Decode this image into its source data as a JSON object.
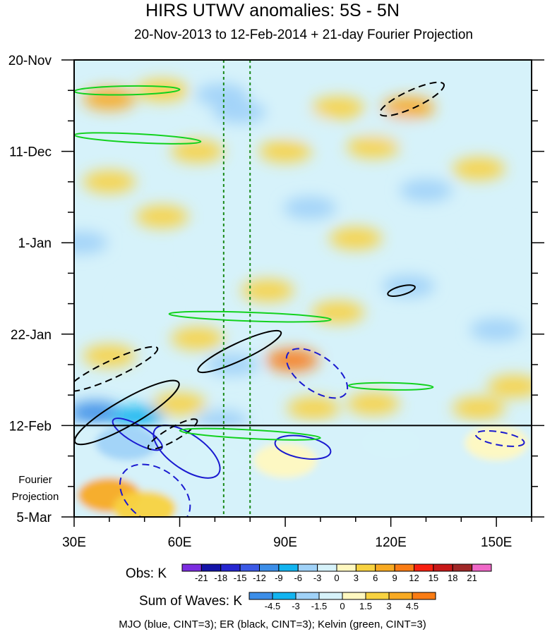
{
  "chart_data": {
    "type": "heatmap",
    "title": "HIRS UTWV anomalies: 5S - 5N",
    "subtitle": "20-Nov-2013 to 12-Feb-2014 + 21-day Fourier Projection",
    "x_ticks": [
      "30E",
      "60E",
      "90E",
      "120E",
      "150E"
    ],
    "x_tick_values": [
      30,
      60,
      90,
      120,
      150
    ],
    "xlim": [
      30,
      160
    ],
    "y_ticks": [
      "20-Nov",
      "11-Dec",
      "1-Jan",
      "22-Jan",
      "12-Feb",
      "5-Mar"
    ],
    "y_tick_days": [
      0,
      21,
      42,
      63,
      84,
      105
    ],
    "ylim_days": [
      0,
      105
    ],
    "projection_start_day": 84,
    "projection_label_1": "Fourier",
    "projection_label_2": "Projection",
    "reference_lines_lon": [
      72.5,
      80
    ],
    "obs_colorbar": {
      "label": "Obs: K",
      "ticks": [
        "-21",
        "-18",
        "-15",
        "-12",
        "-9",
        "-6",
        "-3",
        "0",
        "3",
        "6",
        "9",
        "12",
        "15",
        "18",
        "21"
      ],
      "colors": [
        "#7c2de0",
        "#1414a8",
        "#2626d0",
        "#3c5ae6",
        "#3c8ee8",
        "#12b4f0",
        "#a0d2f8",
        "#d6f2fa",
        "#fff8c0",
        "#f8d240",
        "#f8aa22",
        "#fa7c14",
        "#f82010",
        "#c81818",
        "#a02828",
        "#f068c8"
      ]
    },
    "wave_colorbar": {
      "label": "Sum of Waves: K",
      "ticks": [
        "-4.5",
        "-3",
        "-1.5",
        "0",
        "1.5",
        "3",
        "4.5"
      ],
      "colors": [
        "#3c8ee8",
        "#12b4f0",
        "#a0d2f8",
        "#d6f2fa",
        "#fff8c0",
        "#f8d240",
        "#f8aa22",
        "#fa7c14"
      ]
    },
    "anomaly_blobs": [
      {
        "lon": 40,
        "day": 9,
        "v": 6
      },
      {
        "lon": 55,
        "day": 7,
        "v": 4
      },
      {
        "lon": 85,
        "day": 4,
        "v": -3
      },
      {
        "lon": 72,
        "day": 8,
        "v": -4
      },
      {
        "lon": 77,
        "day": 12,
        "v": -5
      },
      {
        "lon": 95,
        "day": 15,
        "v": -3
      },
      {
        "lon": 120,
        "day": 16,
        "v": -3
      },
      {
        "lon": 125,
        "day": 11,
        "v": 6
      },
      {
        "lon": 105,
        "day": 11,
        "v": 4
      },
      {
        "lon": 65,
        "day": 21,
        "v": 4
      },
      {
        "lon": 40,
        "day": 28,
        "v": 5
      },
      {
        "lon": 90,
        "day": 21,
        "v": 4
      },
      {
        "lon": 115,
        "day": 20,
        "v": 3
      },
      {
        "lon": 130,
        "day": 30,
        "v": -4
      },
      {
        "lon": 145,
        "day": 25,
        "v": 3
      },
      {
        "lon": 97,
        "day": 34,
        "v": -4
      },
      {
        "lon": 55,
        "day": 36,
        "v": 5
      },
      {
        "lon": 32,
        "day": 42,
        "v": -4
      },
      {
        "lon": 70,
        "day": 44,
        "v": -3
      },
      {
        "lon": 110,
        "day": 41,
        "v": 4
      },
      {
        "lon": 150,
        "day": 40,
        "v": -3
      },
      {
        "lon": 125,
        "day": 52,
        "v": -4
      },
      {
        "lon": 50,
        "day": 55,
        "v": -3
      },
      {
        "lon": 85,
        "day": 53,
        "v": 5
      },
      {
        "lon": 105,
        "day": 58,
        "v": 3
      },
      {
        "lon": 150,
        "day": 62,
        "v": -6
      },
      {
        "lon": 65,
        "day": 64,
        "v": 4
      },
      {
        "lon": 40,
        "day": 68,
        "v": 5
      },
      {
        "lon": 92,
        "day": 69,
        "v": 9
      },
      {
        "lon": 75,
        "day": 70,
        "v": -4
      },
      {
        "lon": 130,
        "day": 72,
        "v": -3
      },
      {
        "lon": 155,
        "day": 75,
        "v": 4
      },
      {
        "lon": 36,
        "day": 81,
        "v": -12
      },
      {
        "lon": 48,
        "day": 82,
        "v": -9
      },
      {
        "lon": 60,
        "day": 79,
        "v": 3
      },
      {
        "lon": 98,
        "day": 80,
        "v": 4
      },
      {
        "lon": 115,
        "day": 79,
        "v": 3
      },
      {
        "lon": 145,
        "day": 80,
        "v": 3
      },
      {
        "lon": 72,
        "day": 83,
        "v": -4
      }
    ],
    "projection_blobs": [
      {
        "lon": 40,
        "day": 100,
        "v": 3.5
      },
      {
        "lon": 50,
        "day": 103,
        "v": 2.5
      },
      {
        "lon": 45,
        "day": 88,
        "v": -3
      },
      {
        "lon": 70,
        "day": 92,
        "v": -1.5
      },
      {
        "lon": 90,
        "day": 92,
        "v": 1
      },
      {
        "lon": 120,
        "day": 88,
        "v": -1.5
      },
      {
        "lon": 150,
        "day": 88,
        "v": 1
      }
    ],
    "wave_contours": [
      {
        "wave": "MJO",
        "lon": 53,
        "day": 100,
        "rx": 11,
        "ry": 6,
        "rot": 35,
        "dash": true
      },
      {
        "wave": "MJO",
        "lon": 48,
        "day": 86,
        "rx": 8,
        "ry": 2,
        "rot": 30,
        "dash": false
      },
      {
        "wave": "MJO",
        "lon": 62,
        "day": 90,
        "rx": 11,
        "ry": 4,
        "rot": 35,
        "dash": false
      },
      {
        "wave": "MJO",
        "lon": 99,
        "day": 72,
        "rx": 10,
        "ry": 4,
        "rot": 35,
        "dash": true
      },
      {
        "wave": "MJO",
        "lon": 95,
        "day": 89,
        "rx": 8,
        "ry": 2.5,
        "rot": 10,
        "dash": false
      },
      {
        "wave": "MJO",
        "lon": 151,
        "day": 87,
        "rx": 7,
        "ry": 1.5,
        "rot": 10,
        "dash": true
      },
      {
        "wave": "ER",
        "lon": 126,
        "day": 9,
        "rx": 10,
        "ry": 2,
        "rot": -25,
        "dash": true
      },
      {
        "wave": "ER",
        "lon": 77,
        "day": 67,
        "rx": 13,
        "ry": 2,
        "rot": -25,
        "dash": false
      },
      {
        "wave": "ER",
        "lon": 41,
        "day": 71,
        "rx": 14,
        "ry": 2,
        "rot": -25,
        "dash": true
      },
      {
        "wave": "ER",
        "lon": 45,
        "day": 81,
        "rx": 17,
        "ry": 3,
        "rot": -30,
        "dash": false
      },
      {
        "wave": "ER",
        "lon": 58,
        "day": 86,
        "rx": 8,
        "ry": 1.5,
        "rot": -30,
        "dash": true
      },
      {
        "wave": "ER",
        "lon": 123,
        "day": 53,
        "rx": 4,
        "ry": 1,
        "rot": -15,
        "dash": false
      },
      {
        "wave": "Kelvin",
        "lon": 45,
        "day": 7,
        "rx": 15,
        "ry": 1,
        "rot": -1,
        "dash": false
      },
      {
        "wave": "Kelvin",
        "lon": 48,
        "day": 18,
        "rx": 18,
        "ry": 1,
        "rot": 3,
        "dash": false
      },
      {
        "wave": "Kelvin",
        "lon": 80,
        "day": 59,
        "rx": 23,
        "ry": 1,
        "rot": 2,
        "dash": false
      },
      {
        "wave": "Kelvin",
        "lon": 120,
        "day": 75,
        "rx": 12,
        "ry": 0.8,
        "rot": 1,
        "dash": false
      },
      {
        "wave": "Kelvin",
        "lon": 80,
        "day": 86,
        "rx": 20,
        "ry": 1,
        "rot": 3,
        "dash": false
      }
    ],
    "wave_colors": {
      "MJO": "#1a1ad0",
      "ER": "#000000",
      "Kelvin": "#12d21e"
    },
    "footnote": "MJO (blue, CINT=3); ER (black, CINT=3); Kelvin (green, CINT=3)"
  }
}
